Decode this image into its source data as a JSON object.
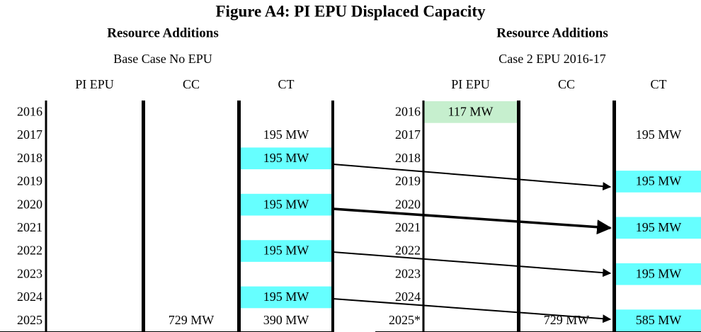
{
  "title": "Figure A4:  PI EPU Displaced Capacity",
  "tables": [
    {
      "heading": "Resource Additions",
      "subheading": "Base Case No EPU",
      "columns": [
        "PI EPU",
        "CC",
        "CT"
      ],
      "rows": [
        [
          "2016",
          null,
          null,
          null
        ],
        [
          "2017",
          null,
          null,
          "195 MW"
        ],
        [
          "2018",
          null,
          null,
          {
            "text": "195 MW",
            "color": "#66ffff"
          }
        ],
        [
          "2019",
          null,
          null,
          null
        ],
        [
          "2020",
          null,
          null,
          {
            "text": "195 MW",
            "color": "#66ffff"
          }
        ],
        [
          "2021",
          null,
          null,
          null
        ],
        [
          "2022",
          null,
          null,
          {
            "text": "195 MW",
            "color": "#66ffff"
          }
        ],
        [
          "2023",
          null,
          null,
          null
        ],
        [
          "2024",
          null,
          null,
          {
            "text": "195 MW",
            "color": "#66ffff"
          }
        ],
        [
          "2025",
          null,
          "729 MW",
          "390 MW"
        ]
      ]
    },
    {
      "heading": "Resource Additions",
      "subheading": "Case 2 EPU 2016-17",
      "columns": [
        "PI EPU",
        "CC",
        "CT"
      ],
      "rows": [
        [
          "2016",
          {
            "text": "117 MW",
            "color": "#c6efce"
          },
          null,
          null
        ],
        [
          "2017",
          null,
          null,
          "195 MW"
        ],
        [
          "2018",
          null,
          null,
          null
        ],
        [
          "2019",
          null,
          null,
          {
            "text": "195 MW",
            "color": "#66ffff"
          }
        ],
        [
          "2020",
          null,
          null,
          null
        ],
        [
          "2021",
          null,
          null,
          {
            "text": "195 MW",
            "color": "#66ffff"
          }
        ],
        [
          "2022",
          null,
          null,
          null
        ],
        [
          "2023",
          null,
          null,
          {
            "text": "195 MW",
            "color": "#66ffff"
          }
        ],
        [
          "2024",
          null,
          null,
          null
        ],
        [
          "2025*",
          null,
          "729 MW",
          {
            "text": "585 MW",
            "color": "#66ffff"
          }
        ]
      ]
    }
  ]
}
